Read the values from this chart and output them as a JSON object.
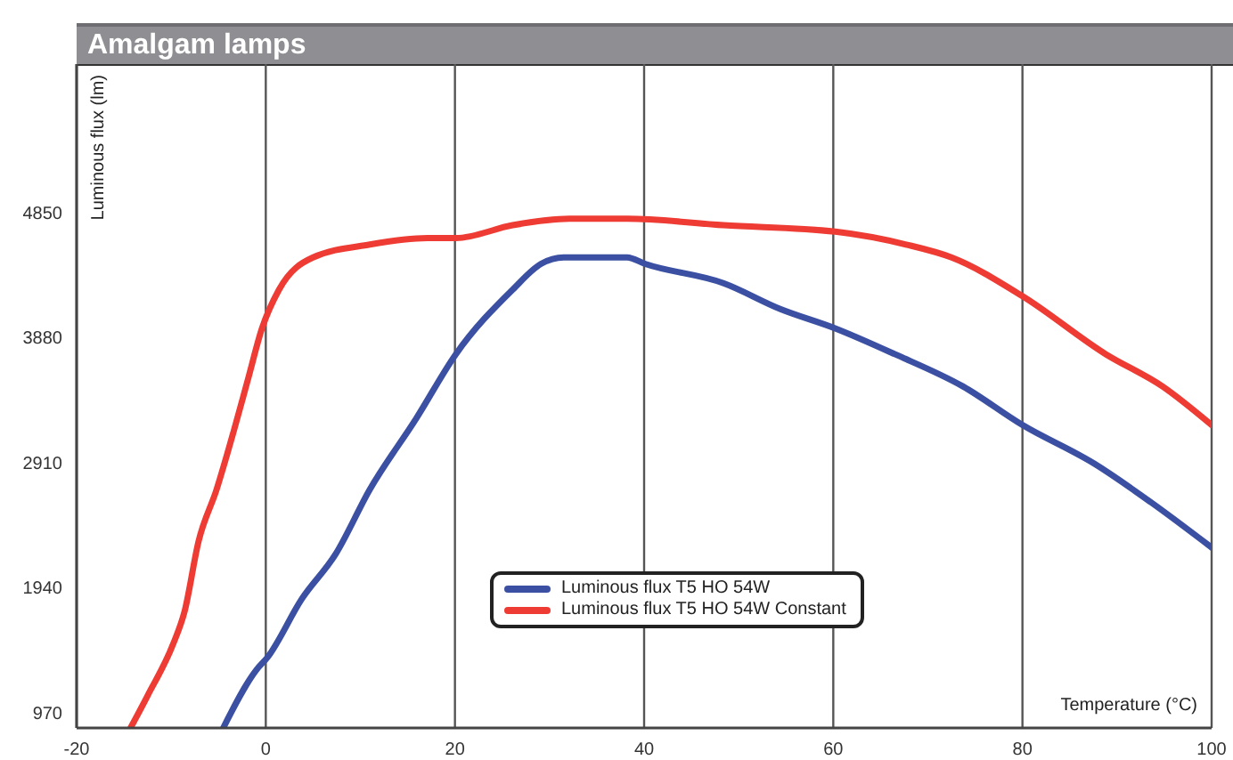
{
  "chart_data": {
    "type": "line",
    "title": "Amalgam lamps",
    "xlabel": "Temperature (°C)",
    "ylabel": "Luminous flux (lm)",
    "xlim": [
      -20,
      100
    ],
    "xticks": [
      -20,
      0,
      20,
      40,
      60,
      80,
      100
    ],
    "ylim": [
      850,
      6000
    ],
    "yticks": [
      970,
      1940,
      2910,
      3880,
      4850
    ],
    "grid": "x",
    "legend": "bottom",
    "series": [
      {
        "name": "Luminous flux T5 HO 54W",
        "color": "#3b50a2",
        "x": [
          -4.5,
          -1.0,
          0.2,
          3.8,
          7.4,
          11.0,
          15.9,
          20.1,
          26.1,
          29.1,
          31.5,
          35.1,
          38.2,
          40.1,
          48.4,
          54.4,
          60.2,
          66.5,
          73.7,
          80.0,
          87.6,
          93.6,
          100
        ],
        "values": [
          850,
          1300,
          1400,
          1850,
          2200,
          2700,
          3250,
          3750,
          4250,
          4450,
          4500,
          4500,
          4500,
          4450,
          4300,
          4100,
          3950,
          3750,
          3500,
          3200,
          2900,
          2600,
          2250
        ]
      },
      {
        "name": "Luminous flux T5 HO 54W Constant",
        "color": "#ee3b33",
        "x": [
          -14.3,
          -12.5,
          -9.8,
          -8.6,
          -7.1,
          -5.2,
          -3.4,
          -1.9,
          -0.4,
          1.4,
          5.0,
          11.0,
          17.1,
          20.1,
          26.1,
          32.1,
          38.2,
          48.4,
          60.2,
          67.7,
          72.5,
          80.0,
          88.8,
          94.8,
          100
        ],
        "values": [
          850,
          1100,
          1500,
          1750,
          2300,
          2700,
          3150,
          3550,
          3950,
          4250,
          4500,
          4600,
          4650,
          4650,
          4750,
          4800,
          4800,
          4750,
          4700,
          4600,
          4500,
          4200,
          3750,
          3500,
          3200
        ]
      }
    ]
  }
}
